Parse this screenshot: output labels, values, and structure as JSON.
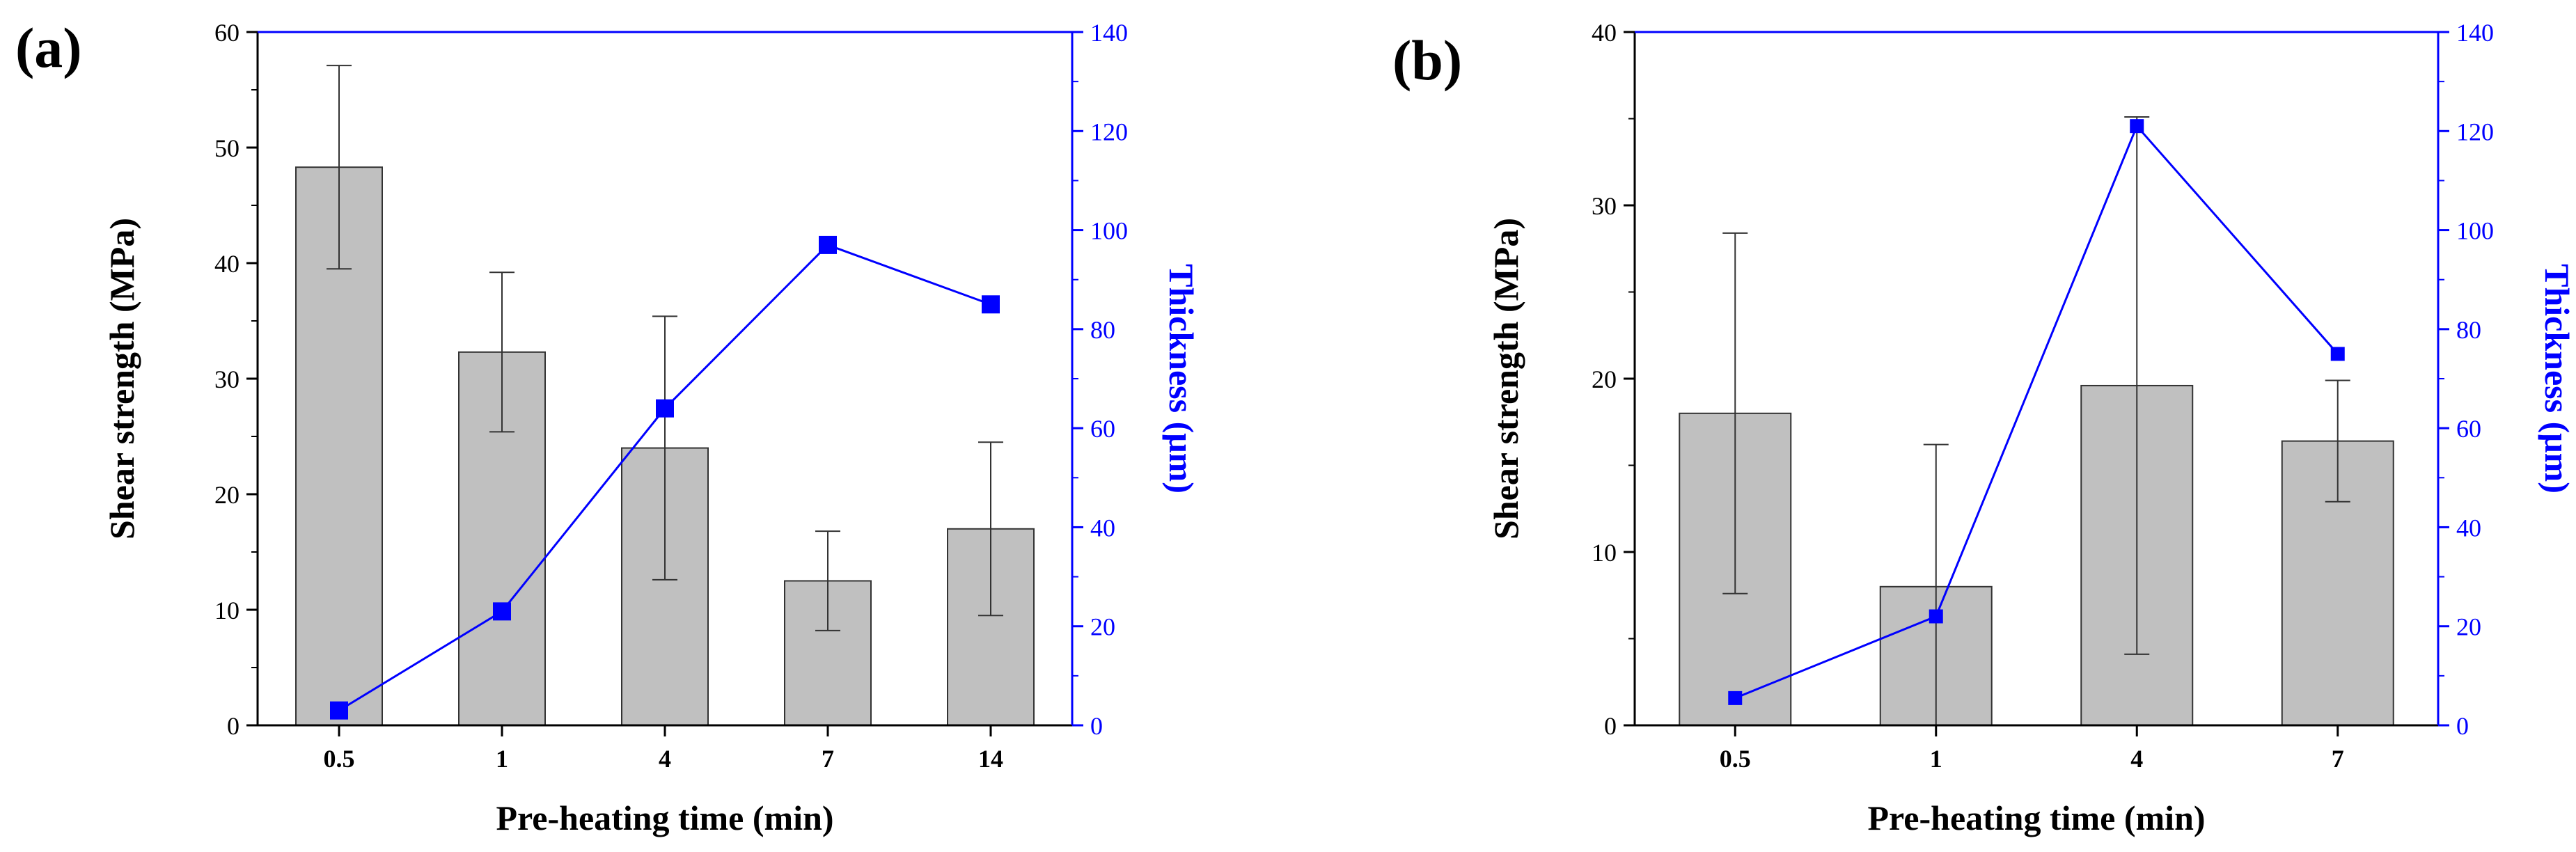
{
  "chart_data": [
    {
      "panel_label": "(a)",
      "type": "bar",
      "categories": [
        "0.5",
        "1",
        "4",
        "7",
        "14"
      ],
      "xlabel": "Pre-heating time (min)",
      "ylabel": "Shear strength (MPa)",
      "ylim": [
        0,
        60
      ],
      "yticks": [
        "0",
        "10",
        "20",
        "30",
        "40",
        "50",
        "60"
      ],
      "y2label": "Thickness (μm)",
      "y2lim": [
        0,
        140
      ],
      "y2ticks": [
        "0",
        "20",
        "40",
        "60",
        "80",
        "100",
        "120",
        "140"
      ],
      "grid": false,
      "series": [
        {
          "type": "bar",
          "axis": "left",
          "values": [
            48.3,
            32.3,
            24.0,
            12.5,
            17.0
          ],
          "error": [
            8.8,
            6.9,
            11.4,
            4.3,
            7.5
          ],
          "color": "#c0c0c0"
        },
        {
          "type": "line",
          "axis": "right",
          "values": [
            3,
            23,
            64,
            97,
            85
          ],
          "color": "#0000ff",
          "marker": "square"
        }
      ]
    },
    {
      "panel_label": "(b)",
      "type": "bar",
      "categories": [
        "0.5",
        "1",
        "4",
        "7"
      ],
      "xlabel": "Pre-heating time (min)",
      "ylabel": "Shear strength (MPa)",
      "ylim": [
        0,
        40
      ],
      "yticks": [
        "0",
        "10",
        "20",
        "30",
        "40"
      ],
      "y2label": "Thickness (μm)",
      "y2lim": [
        0,
        140
      ],
      "y2ticks": [
        "0",
        "20",
        "40",
        "60",
        "80",
        "100",
        "120",
        "140"
      ],
      "grid": false,
      "series": [
        {
          "type": "bar",
          "axis": "left",
          "values": [
            18.0,
            8.0,
            19.6,
            16.4
          ],
          "error": [
            10.4,
            8.2,
            15.5,
            3.5
          ],
          "color": "#c0c0c0"
        },
        {
          "type": "line",
          "axis": "right",
          "values": [
            5.5,
            22,
            121,
            75
          ],
          "color": "#0000ff",
          "marker": "square"
        }
      ]
    }
  ]
}
